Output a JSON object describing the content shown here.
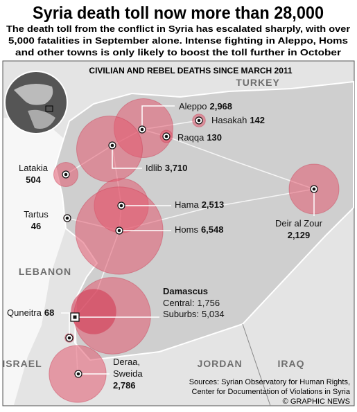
{
  "header": {
    "title": "Syria death toll now more than 28,000",
    "subtitle": [
      "The death toll from the conflict in Syria has escalated sharply, with over",
      "5,000 fatalities in September alone. Intense fighting in Aleppo, Homs",
      "and other towns is only likely to boost the toll further in October"
    ]
  },
  "map": {
    "heading": "Civilian and Rebel Deaths since March 2011",
    "regions": [
      "TURKEY",
      "LEBANON",
      "JORDAN",
      "IRAQ",
      "ISRAEL"
    ],
    "cities": [
      {
        "name": "Aleppo",
        "deaths": {
          "value": 2968,
          "label": "2,968"
        }
      },
      {
        "name": "Hasakah",
        "deaths": {
          "value": 142,
          "label": "142"
        }
      },
      {
        "name": "Raqqa",
        "deaths": {
          "value": 130,
          "label": "130"
        }
      },
      {
        "name": "Idlib",
        "deaths": {
          "value": 3710,
          "label": "3,710"
        }
      },
      {
        "name": "Latakia",
        "deaths": {
          "value": 504,
          "label": "504"
        }
      },
      {
        "name": "Hama",
        "deaths": {
          "value": 2513,
          "label": "2,513"
        }
      },
      {
        "name": "Tartus",
        "deaths": {
          "value": 46,
          "label": "46"
        }
      },
      {
        "name": "Homs",
        "deaths": {
          "value": 6548,
          "label": "6,548"
        }
      },
      {
        "name": "Deir al Zour",
        "deaths": {
          "value": 2129,
          "label": "2,129"
        }
      },
      {
        "name": "Quneitra",
        "deaths": {
          "value": 68,
          "label": "68"
        }
      },
      {
        "name": [
          "Deraa,",
          "Sweida"
        ],
        "deaths": {
          "value": 2786,
          "label": "2,786"
        }
      }
    ],
    "damascus": {
      "name": "Damascus",
      "parts": [
        {
          "name": "Central:",
          "deaths": {
            "value": 1756,
            "label": "1,756"
          }
        },
        {
          "name": "Suburbs:",
          "deaths": {
            "value": 5034,
            "label": "5,034"
          }
        }
      ]
    },
    "sources": [
      "Sources: Syrian Observatory for Human Rights,",
      "Center for Documentation of Violations in Syria",
      "© GRAPHIC NEWS"
    ]
  }
}
